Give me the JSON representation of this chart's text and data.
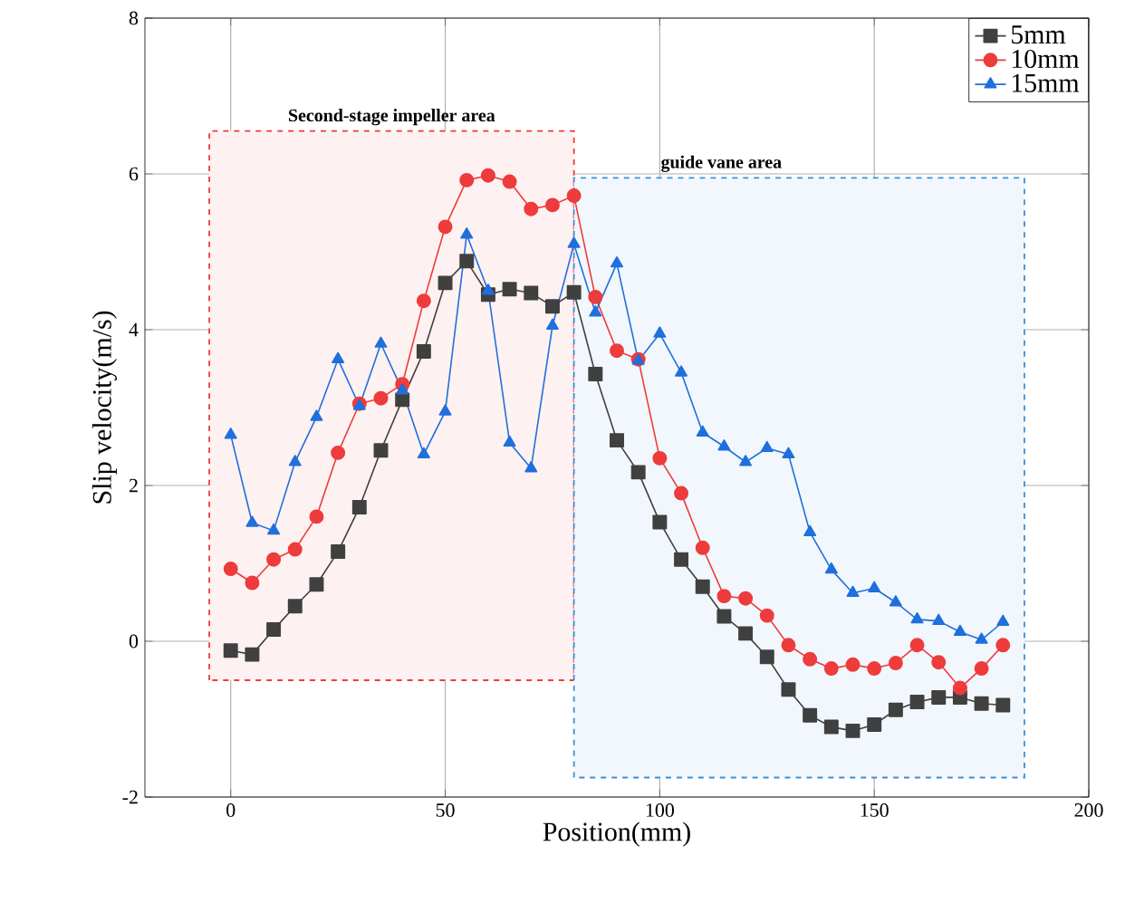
{
  "chart_data": {
    "type": "line",
    "xlabel": "Position(mm)",
    "ylabel": "Slip velocity(m/s)",
    "x": [
      0,
      5,
      10,
      15,
      20,
      25,
      30,
      35,
      40,
      45,
      50,
      55,
      60,
      65,
      70,
      75,
      80,
      85,
      90,
      95,
      100,
      105,
      110,
      115,
      120,
      125,
      130,
      135,
      140,
      145,
      150,
      155,
      160,
      165,
      170,
      175,
      180
    ],
    "series": [
      {
        "name": "5mm",
        "color": "#404040",
        "marker": "square",
        "values": [
          -0.12,
          -0.17,
          0.15,
          0.45,
          0.73,
          1.15,
          1.72,
          2.45,
          3.1,
          3.72,
          4.6,
          4.88,
          4.45,
          4.52,
          4.47,
          4.3,
          4.48,
          3.43,
          2.58,
          2.17,
          1.53,
          1.05,
          0.7,
          0.32,
          0.1,
          -0.2,
          -0.62,
          -0.95,
          -1.1,
          -1.15,
          -1.07,
          -0.88,
          -0.78,
          -0.72,
          -0.72,
          -0.8,
          -0.82
        ]
      },
      {
        "name": "10mm",
        "color": "#ee3b3b",
        "marker": "circle",
        "values": [
          0.93,
          0.75,
          1.05,
          1.18,
          1.6,
          2.42,
          3.05,
          3.12,
          3.3,
          4.37,
          5.32,
          5.92,
          5.98,
          5.9,
          5.55,
          5.6,
          5.72,
          4.42,
          3.73,
          3.62,
          2.35,
          1.9,
          1.2,
          0.58,
          0.55,
          0.33,
          -0.05,
          -0.23,
          -0.35,
          -0.3,
          -0.35,
          -0.28,
          -0.05,
          -0.27,
          -0.6,
          -0.35,
          -0.05
        ]
      },
      {
        "name": "15mm",
        "color": "#1f6fdc",
        "marker": "triangle",
        "values": [
          2.65,
          1.52,
          1.42,
          2.3,
          2.88,
          3.62,
          3.02,
          3.82,
          3.22,
          2.4,
          2.95,
          5.22,
          4.5,
          2.55,
          2.22,
          4.05,
          5.1,
          4.22,
          4.85,
          3.6,
          3.95,
          3.45,
          2.68,
          2.5,
          2.3,
          2.48,
          2.4,
          1.4,
          0.92,
          0.62,
          0.68,
          0.5,
          0.28,
          0.26,
          0.12,
          0.02,
          0.25
        ]
      }
    ],
    "xlim": [
      -20,
      200
    ],
    "xticks": [
      0,
      50,
      100,
      150,
      200
    ],
    "ylim": [
      -2,
      8
    ],
    "yticks": [
      -2,
      0,
      2,
      4,
      6,
      8
    ],
    "bands": [
      {
        "axis": "x",
        "from": -5,
        "to": 80,
        "label": "Second-stage impeller area",
        "color": "#ee3b3b"
      },
      {
        "axis": "x",
        "from": 80,
        "to": 185,
        "label": "guide vane area",
        "color": "#3a8fd8"
      }
    ],
    "grid": true,
    "legend": "top right",
    "line_style": "solid"
  }
}
